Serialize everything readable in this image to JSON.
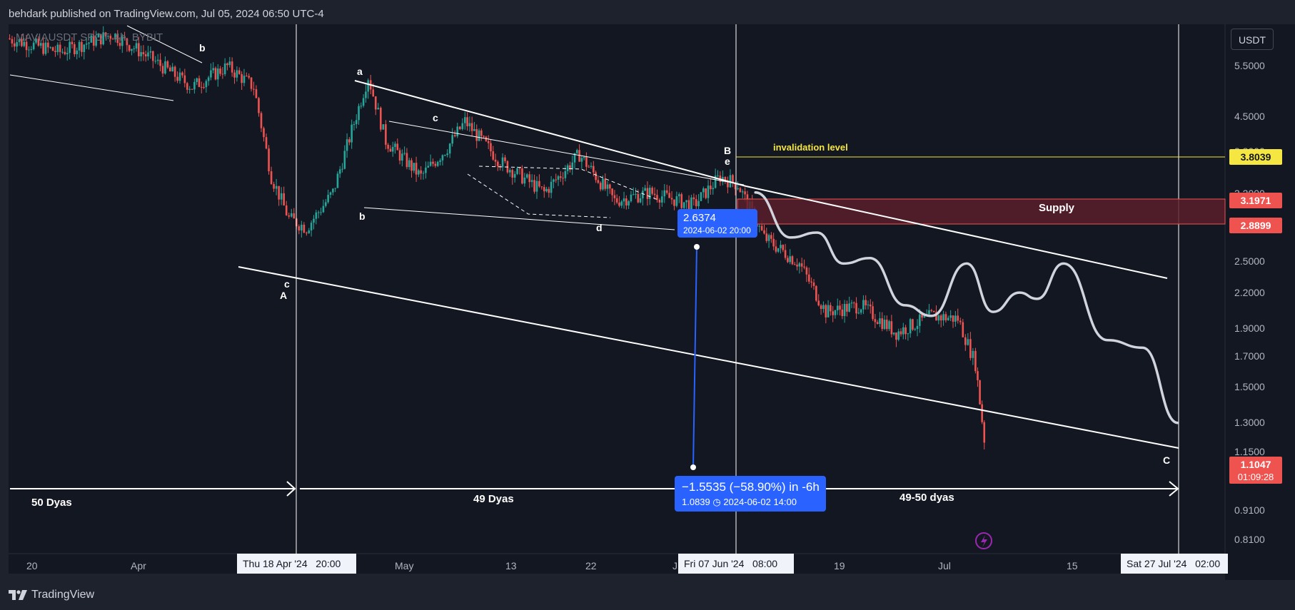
{
  "header": {
    "publisher_text": "behdark published on TradingView.com, Jul 05, 2024 06:50 UTC-4"
  },
  "symbol_line": "MAVIAUSDT SPOT, 4h, BYBIT",
  "currency_button": "USDT",
  "footer": {
    "brand": "TradingView"
  },
  "colors": {
    "background": "#131722",
    "panel": "#1e222d",
    "up_candle": "#26a69a",
    "down_candle": "#ef5350",
    "supply_zone": "#5b1f2b",
    "invalidation_line": "#f5e642",
    "measure_blue": "#2962ff"
  },
  "annotations": {
    "invalidation_label": "invalidation level",
    "supply_label": "Supply",
    "wave_labels": {
      "b1": "b",
      "a": "a",
      "c1": "c",
      "b2": "b",
      "d": "d",
      "B": "B",
      "e": "e",
      "c2": "c",
      "A": "A",
      "C": "C"
    },
    "days": {
      "first": "50 Dyas",
      "second": "49 Dyas",
      "third": "49-50 dyas"
    }
  },
  "price_point": {
    "price": "2.6374",
    "time": "2024-06-02 20:00"
  },
  "measure": {
    "change": "−1.5535 (−58.90%) in -6h",
    "detail": "1.0839 ◷ 2024-06-02  14:00"
  },
  "price_tags": {
    "invalidation": "3.8039",
    "supply_top": "3.1971",
    "supply_bottom": "2.8899",
    "last_price": "1.1047",
    "countdown": "01:09:28"
  },
  "time_tags": {
    "t1": "Thu 18 Apr '24   20:00",
    "t2": "Fri 07 Jun '24   08:00",
    "t3": "Sat 27 Jul '24   02:00"
  },
  "chart_data": {
    "type": "candlestick",
    "title": "MAVIAUSDT SPOT, 4h, BYBIT",
    "y_scale": "log",
    "ylim": [
      0.78,
      6.2
    ],
    "price_ticks": [
      "5.5000",
      "4.5000",
      "3.8000",
      "3.2000",
      "2.5000",
      "2.2000",
      "1.9000",
      "1.7000",
      "1.5000",
      "1.3000",
      "1.1500",
      "0.9100",
      "0.8100"
    ],
    "time_ticks": [
      "20",
      "Apr",
      "May",
      "13",
      "22",
      "J",
      "19",
      "Jul",
      "15"
    ],
    "price_path": [
      {
        "t": "Mar 16",
        "p": 5.6
      },
      {
        "t": "Mar 22",
        "p": 5.3
      },
      {
        "t": "Mar 28",
        "p": 5.7
      },
      {
        "t": "Apr 01",
        "p": 5.2
      },
      {
        "t": "Apr 06",
        "p": 4.6
      },
      {
        "t": "Apr 10",
        "p": 5.0
      },
      {
        "t": "Apr 13",
        "p": 4.6
      },
      {
        "t": "Apr 15",
        "p": 3.2
      },
      {
        "t": "Apr 17",
        "p": 2.7
      },
      {
        "t": "Apr 19",
        "p": 2.6
      },
      {
        "t": "Apr 22",
        "p": 3.0
      },
      {
        "t": "Apr 26",
        "p": 4.8
      },
      {
        "t": "Apr 28",
        "p": 3.7
      },
      {
        "t": "May 02",
        "p": 3.2
      },
      {
        "t": "May 05",
        "p": 3.6
      },
      {
        "t": "May 07",
        "p": 4.0
      },
      {
        "t": "May 11",
        "p": 3.4
      },
      {
        "t": "May 16",
        "p": 3.0
      },
      {
        "t": "May 20",
        "p": 3.5
      },
      {
        "t": "May 24",
        "p": 2.9
      },
      {
        "t": "May 28",
        "p": 3.0
      },
      {
        "t": "Jun 02",
        "p": 2.85
      },
      {
        "t": "Jun 05",
        "p": 3.2
      },
      {
        "t": "Jun 07",
        "p": 3.1
      },
      {
        "t": "Jun 10",
        "p": 2.5
      },
      {
        "t": "Jun 14",
        "p": 2.25
      },
      {
        "t": "Jun 17",
        "p": 1.85
      },
      {
        "t": "Jun 21",
        "p": 1.9
      },
      {
        "t": "Jun 25",
        "p": 1.7
      },
      {
        "t": "Jun 29",
        "p": 1.82
      },
      {
        "t": "Jul 02",
        "p": 1.8
      },
      {
        "t": "Jul 04",
        "p": 1.5
      },
      {
        "t": "Jul 05",
        "p": 1.1047
      }
    ],
    "projection_path": [
      {
        "t": "Jun 09",
        "p": 3.0
      },
      {
        "t": "Jun 13",
        "p": 2.5
      },
      {
        "t": "Jun 16",
        "p": 2.55
      },
      {
        "t": "Jun 19",
        "p": 2.25
      },
      {
        "t": "Jun 22",
        "p": 2.3
      },
      {
        "t": "Jun 26",
        "p": 1.9
      },
      {
        "t": "Jun 29",
        "p": 1.82
      },
      {
        "t": "Jul 03",
        "p": 2.25
      },
      {
        "t": "Jul 06",
        "p": 1.85
      },
      {
        "t": "Jul 09",
        "p": 2.0
      },
      {
        "t": "Jul 11",
        "p": 1.95
      },
      {
        "t": "Jul 14",
        "p": 2.25
      },
      {
        "t": "Jul 19",
        "p": 1.65
      },
      {
        "t": "Jul 23",
        "p": 1.6
      },
      {
        "t": "Jul 27",
        "p": 1.18
      }
    ],
    "levels": {
      "invalidation": 3.8039,
      "supply_top": 3.1971,
      "supply_bottom": 2.8899,
      "last": 1.1047
    }
  }
}
